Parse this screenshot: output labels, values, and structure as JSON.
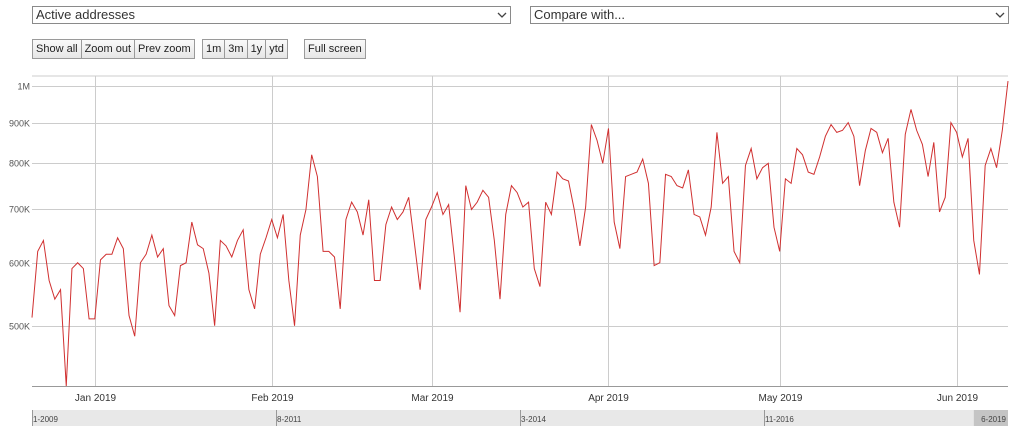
{
  "controls": {
    "metric_select": "Active addresses",
    "compare_select": "Compare with...",
    "zoom_buttons": [
      "Show all",
      "Zoom out",
      "Prev zoom"
    ],
    "range_buttons": [
      "1m",
      "3m",
      "1y",
      "ytd"
    ],
    "fullscreen_label": "Full screen"
  },
  "navigator": {
    "labels": [
      "1-2009",
      "8-2011",
      "3-2014",
      "11-2016",
      "6-2019"
    ],
    "selection_fraction": [
      0.965,
      1.0
    ]
  },
  "colors": {
    "line": "#d03030",
    "grid": "#cccccc",
    "navigator_bg": "#e8e8e8",
    "navigator_selection": "#c4c4c4"
  },
  "chart_data": {
    "type": "line",
    "title": "",
    "xlabel": "",
    "ylabel": "",
    "x_start": "2018-12-21",
    "x_step_days": 1,
    "x_tick_labels": [
      {
        "date": "2019-01-01",
        "label": "Jan 2019"
      },
      {
        "date": "2019-02-01",
        "label": "Feb 2019"
      },
      {
        "date": "2019-03-01",
        "label": "Mar 2019"
      },
      {
        "date": "2019-04-01",
        "label": "Apr 2019"
      },
      {
        "date": "2019-05-01",
        "label": "May 2019"
      },
      {
        "date": "2019-06-01",
        "label": "Jun 2019"
      }
    ],
    "y_scale": "log",
    "y_ticks": [
      {
        "value": 500000,
        "label": "500K"
      },
      {
        "value": 600000,
        "label": "600K"
      },
      {
        "value": 700000,
        "label": "700K"
      },
      {
        "value": 800000,
        "label": "800K"
      },
      {
        "value": 900000,
        "label": "900K"
      },
      {
        "value": 1000000,
        "label": "1M"
      }
    ],
    "ylim": [
      420000,
      1030000
    ],
    "grid": true,
    "series": [
      {
        "values": [
          512000,
          620000,
          640000,
          570000,
          540000,
          555000,
          420000,
          590000,
          600000,
          590000,
          510000,
          510000,
          605000,
          615000,
          615000,
          645000,
          625000,
          515000,
          485000,
          600000,
          615000,
          650000,
          610000,
          625000,
          530000,
          515000,
          595000,
          600000,
          675000,
          632000,
          625000,
          582000,
          500000,
          640000,
          630000,
          610000,
          640000,
          660000,
          555000,
          525000,
          615000,
          645000,
          680000,
          645000,
          690000,
          570000,
          500000,
          650000,
          700000,
          820000,
          770000,
          620000,
          620000,
          610000,
          525000,
          680000,
          715000,
          695000,
          650000,
          720000,
          570000,
          570000,
          670000,
          705000,
          680000,
          695000,
          725000,
          635000,
          555000,
          680000,
          705000,
          735000,
          690000,
          710000,
          610000,
          520000,
          750000,
          700000,
          715000,
          740000,
          725000,
          640000,
          540000,
          690000,
          750000,
          735000,
          705000,
          715000,
          590000,
          560000,
          715000,
          690000,
          780000,
          765000,
          760000,
          700000,
          630000,
          705000,
          895000,
          855000,
          800000,
          885000,
          675000,
          625000,
          770000,
          775000,
          780000,
          810000,
          755000,
          595000,
          600000,
          775000,
          770000,
          750000,
          745000,
          785000,
          690000,
          685000,
          650000,
          705000,
          875000,
          755000,
          770000,
          620000,
          600000,
          795000,
          835000,
          765000,
          790000,
          800000,
          665000,
          620000,
          765000,
          755000,
          835000,
          820000,
          780000,
          775000,
          815000,
          865000,
          895000,
          875000,
          880000,
          900000,
          865000,
          750000,
          830000,
          885000,
          875000,
          825000,
          860000,
          715000,
          665000,
          870000,
          935000,
          880000,
          845000,
          770000,
          850000,
          695000,
          725000,
          900000,
          875000,
          815000,
          860000,
          640000,
          580000,
          795000,
          835000,
          790000,
          880000,
          1015000
        ]
      }
    ]
  }
}
